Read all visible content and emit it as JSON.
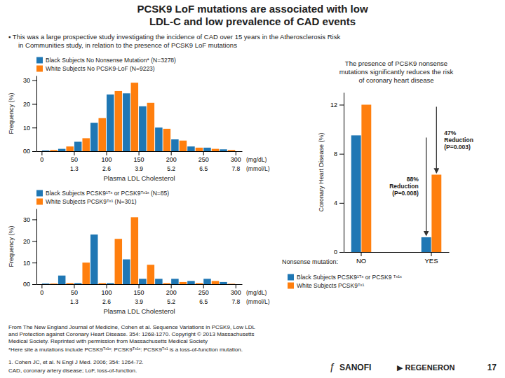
{
  "title": "PCSK9 LoF mutations are associated with low\nLDL-C and low prevalence of CAD events",
  "subtitle": "▪  This was a large prospective study investigating the incidence of CAD over 15 years in the Atherosclerosis Risk\nin Communities study, in relation to the presence of PCSK9 LoF mutations",
  "annotations": [
    "From The New England Journal of Medicine, Cohen et al. Sequence Variations in PCSK9, Low LDL\nand Protection against Coronary Heart Disease. 354: 1268-1270. Copyright © 2013 Massachusetts\nMedical Society. Reprinted with permission from Massachusetts Medical Society",
    "*Here site a mutations include PCSK9ᵀˣ¹ˣ: PCSK9ᵀˣ¹ˣ: PCSK9ᵀˣ¹ is a loss-of-function mutation."
  ],
  "footer": [
    "1. Cohen JC, et al. N Engl J Med. 2006; 354: 1264-72.",
    "CAD, coronary artery disease; LoF, loss-of-function.",
    "ƒ",
    "SANOFI",
    "▶ REGENERON",
    "17"
  ],
  "chart_data": [
    {
      "type": "histogram",
      "bins": [
        0,
        25,
        50,
        75,
        100,
        125,
        150,
        175,
        200,
        225,
        250,
        275,
        300
      ],
      "series": [
        {
          "name": "Black Subjects No Nonsense Mutation* (N=3278)",
          "values": [
            0.3,
            1.0,
            4.0,
            12.0,
            24.0,
            24.5,
            19.0,
            10.0,
            5.0,
            2.0,
            1.5,
            0.8
          ]
        },
        {
          "name": "White Subjects No PCSK9-LoF  (N=9223)",
          "values": [
            0.5,
            2.0,
            5.5,
            14.0,
            25.5,
            29.0,
            20.5,
            9.5,
            4.5,
            1.5,
            1.0,
            0.5
          ]
        }
      ],
      "xlabel": "Plasma LDL Cholesterol",
      "ylabel": "Frequency (%)",
      "xlim": [
        -8,
        310
      ],
      "xticks": [
        0,
        50,
        100,
        150,
        200,
        250,
        300
      ],
      "x2ticks": [
        {
          "value": 50,
          "label": "1.3"
        },
        {
          "value": 100,
          "label": "2.6"
        },
        {
          "value": 150,
          "label": "3.9"
        },
        {
          "value": 200,
          "label": "5.2"
        },
        {
          "value": 250,
          "label": "6.5"
        },
        {
          "value": 300,
          "label": "7.8"
        }
      ],
      "ylim": [
        0,
        32
      ],
      "yticks": [
        {
          "value": 0,
          "label": "00"
        },
        10,
        20,
        30
      ],
      "annotations": [
        "(mg/dL)",
        "(mmol/L)"
      ],
      "legend": "top"
    },
    {
      "type": "histogram",
      "bins": [
        0,
        25,
        50,
        75,
        100,
        125,
        150,
        175,
        200,
        225,
        250,
        275,
        300
      ],
      "series": [
        {
          "name": "Black Subjects PCSK9¹ᵀˣ or PCSK9ᵀˣ¹ˣ (N=85)",
          "values": [
            0.3,
            4.0,
            0.5,
            23.0,
            0.5,
            11.5,
            2.5,
            2.5,
            2.5,
            1.5,
            2.5,
            1.0
          ]
        },
        {
          "name": "White Subjects PCSK9ᵀˣ¹ (N=301)",
          "values": [
            0.3,
            0.5,
            10.0,
            0.5,
            21.0,
            31.0,
            9.0,
            0.5,
            1.0,
            0.5,
            1.5,
            0.2
          ]
        }
      ],
      "xlabel": "Plasma LDL Cholesterol",
      "ylabel": "Frequency (%)",
      "xlim": [
        -8,
        310
      ],
      "xticks": [
        0,
        50,
        100,
        150,
        200,
        250,
        300
      ],
      "x2ticks": [
        {
          "value": 50,
          "label": "1.3"
        },
        {
          "value": 100,
          "label": "2.6"
        },
        {
          "value": 150,
          "label": "3.9"
        },
        {
          "value": 200,
          "label": "5.2"
        },
        {
          "value": 250,
          "label": "6.5"
        },
        {
          "value": 300,
          "label": "7.8"
        }
      ],
      "ylim": [
        0,
        35
      ],
      "yticks": [
        {
          "value": 0,
          "label": "00"
        },
        10,
        20,
        30
      ],
      "annotations": [
        "(mg/dL)",
        "(mmol/L)"
      ],
      "legend": "top"
    },
    {
      "type": "bar",
      "title": "The presence of PCSK9 nonsense\nmutations significantly reduces the risk\nof coronary heart disease",
      "categories": [
        "NO",
        "YES"
      ],
      "xlabel": "Nonsense mutation:",
      "ylabel": "Coronary Heart Disease (%)",
      "series": [
        {
          "name": "Black Subjects PCSK9¹ᵀˣ or PCSK9 ᵀˣ¹ˣ",
          "values": [
            9.5,
            1.2
          ],
          "annotation": "88%\nReduction\n(P=0.008)"
        },
        {
          "name": "White Subjects PCSK9ᵀˣ¹",
          "values": [
            12.0,
            6.3
          ],
          "annotation": "47%\nReduction\n(P=0.003)"
        }
      ],
      "ylim": [
        0,
        13
      ],
      "yticks": [
        0,
        4,
        8,
        12
      ],
      "legend": "bottom"
    }
  ]
}
